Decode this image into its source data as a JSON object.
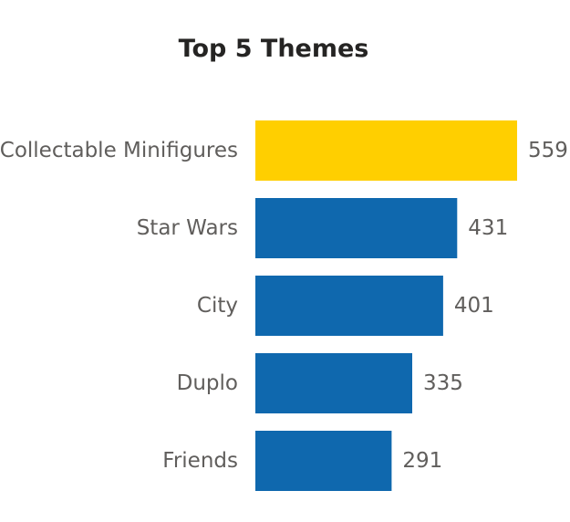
{
  "chart_data": {
    "type": "bar",
    "orientation": "horizontal",
    "title": "Top 5 Themes",
    "xlabel": "",
    "ylabel": "",
    "categories": [
      "Collectable Minifigures",
      "Star Wars",
      "City",
      "Duplo",
      "Friends"
    ],
    "values": [
      559,
      431,
      401,
      335,
      291
    ],
    "xlim": [
      0,
      559
    ],
    "grid": false,
    "data_labels": true,
    "colors": {
      "highlight": "#FFCF00",
      "default": "#0F68AE"
    },
    "highlight_index": 0
  }
}
